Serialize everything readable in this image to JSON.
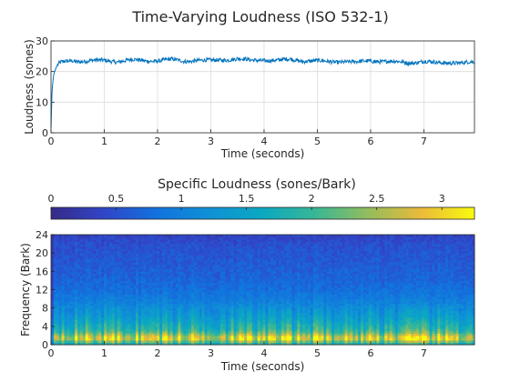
{
  "chart_data": [
    {
      "type": "line",
      "title": "Time-Varying Loudness (ISO 532-1)",
      "xlabel": "Time (seconds)",
      "ylabel": "Loudness (sones)",
      "xlim": [
        0,
        7.95
      ],
      "ylim": [
        0,
        30
      ],
      "xticks": [
        0,
        1,
        2,
        3,
        4,
        5,
        6,
        7
      ],
      "yticks": [
        0,
        10,
        20,
        30
      ],
      "grid": true,
      "series_color": "#0072BD",
      "series": [
        {
          "x": [
            0,
            0.02,
            0.05,
            0.1,
            0.15,
            0.2,
            0.3,
            0.4,
            0.5,
            0.75,
            1.0,
            1.25,
            1.5,
            1.75,
            2.0,
            2.25,
            2.5,
            2.75,
            3.0,
            3.25,
            3.5,
            3.75,
            4.0,
            4.25,
            4.5,
            4.75,
            5.0,
            5.25,
            5.5,
            5.75,
            6.0,
            6.25,
            6.5,
            6.75,
            7.0,
            7.25,
            7.5,
            7.75,
            7.95
          ],
          "values": [
            1.5,
            14,
            19,
            21.5,
            22.5,
            23,
            23.3,
            23.6,
            23.4,
            23.5,
            23.6,
            23.3,
            23.8,
            23.5,
            23.6,
            23.9,
            23.4,
            23.7,
            23.5,
            23.9,
            24.2,
            23.6,
            23.8,
            23.6,
            24.0,
            23.5,
            23.4,
            23.2,
            23.3,
            23.0,
            23.6,
            23.3,
            23.1,
            22.9,
            23.3,
            22.8,
            23.0,
            22.8,
            23.0
          ]
        }
      ]
    },
    {
      "type": "heatmap",
      "title": "Specific Loudness (sones/Bark)",
      "xlabel": "Time (seconds)",
      "ylabel": "Frequency (Bark)",
      "xlim": [
        0,
        7.95
      ],
      "ylim": [
        0,
        24
      ],
      "xticks": [
        0,
        1,
        2,
        3,
        4,
        5,
        6,
        7
      ],
      "yticks": [
        0,
        4,
        8,
        12,
        16,
        20,
        24
      ],
      "colorbar": {
        "location": "top",
        "range": [
          0,
          3.25
        ],
        "ticks": [
          0,
          0.5,
          1,
          1.5,
          2,
          2.5,
          3
        ],
        "colormap": "parula"
      },
      "band_profile": {
        "bark": [
          0.5,
          1.0,
          1.5,
          2.0,
          2.5,
          3.0,
          3.5,
          4.0,
          4.5,
          5.0,
          5.5,
          6.0,
          7.0,
          8.0,
          9.0,
          10.0,
          12.0,
          14.0,
          16.0,
          18.0,
          20.0,
          22.0,
          24.0
        ],
        "mean_level": [
          1.9,
          2.7,
          2.9,
          2.6,
          2.3,
          2.0,
          1.85,
          1.8,
          1.7,
          1.6,
          1.5,
          1.45,
          1.3,
          1.2,
          1.05,
          0.95,
          0.8,
          0.7,
          0.65,
          0.6,
          0.55,
          0.5,
          0.35
        ]
      }
    }
  ]
}
